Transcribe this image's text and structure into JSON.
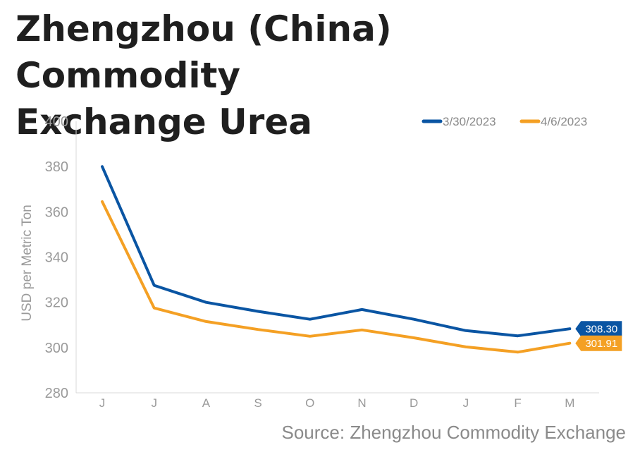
{
  "title_lines": [
    "Zhengzhou (China) Commodity",
    "Exchange Urea"
  ],
  "source": "Source: Zhengzhou Commodity Exchange",
  "chart_data": {
    "type": "line",
    "categories": [
      "J",
      "J",
      "A",
      "S",
      "O",
      "N",
      "D",
      "J",
      "F",
      "M"
    ],
    "ylabel": "USD per Metric Ton",
    "ylim": [
      280,
      400
    ],
    "yticks": [
      400,
      380,
      360,
      340,
      320,
      300,
      280
    ],
    "grid": false,
    "legend_position": "top-right",
    "series": [
      {
        "name": "3/30/2023",
        "color": "#0a55a3",
        "values": [
          380,
          327.5,
          320,
          316,
          312.5,
          316.8,
          312.5,
          307.5,
          305.2,
          308.3
        ],
        "end_label": "308.30"
      },
      {
        "name": "4/6/2023",
        "color": "#f4a024",
        "values": [
          364.5,
          317.5,
          311.5,
          308,
          305,
          307.8,
          304.3,
          300.3,
          298,
          301.91
        ],
        "end_label": "301.91"
      }
    ]
  }
}
